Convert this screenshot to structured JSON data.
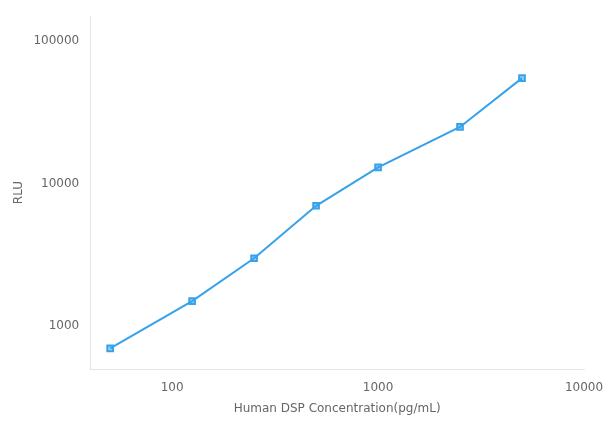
{
  "chart_data": {
    "type": "line",
    "x": [
      50,
      125,
      250,
      500,
      1000,
      2500,
      5000
    ],
    "values": [
      700,
      1500,
      3000,
      7000,
      13000,
      25000,
      55000
    ],
    "marker": "square",
    "xlabel": "Human DSP Concentration(pg/mL)",
    "ylabel": "RLU",
    "xlim": [
      40,
      10000
    ],
    "ylim": [
      500,
      150000
    ],
    "xticks": [
      100,
      1000,
      10000
    ],
    "yticks": [
      1000,
      10000,
      100000
    ],
    "log": true,
    "grid": false
  }
}
